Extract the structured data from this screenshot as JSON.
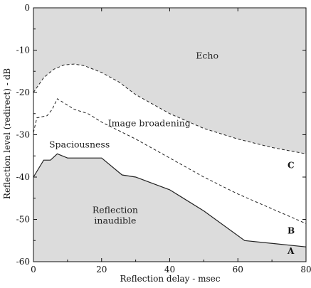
{
  "chart_data": {
    "type": "line",
    "xlabel": "Reflection delay - msec",
    "ylabel": "Reflection level (redirect) - dB",
    "xlim": [
      0,
      80
    ],
    "ylim": [
      -60,
      0
    ],
    "xticks": [
      "0",
      "20",
      "40",
      "60",
      "80"
    ],
    "yticks": [
      "0",
      "-10",
      "-20",
      "-30",
      "-40",
      "-50",
      "-60"
    ],
    "grid": false,
    "colors": {
      "shaded": "#dcdcdc",
      "line": "#222222",
      "background": "#ffffff"
    },
    "series": [
      {
        "name": "C",
        "style": "dashed",
        "x": [
          0,
          3,
          6,
          9,
          12,
          15,
          20,
          25,
          30,
          40,
          50,
          60,
          70,
          80
        ],
        "y": [
          -20,
          -16.5,
          -14.5,
          -13.5,
          -13.3,
          -13.7,
          -15.3,
          -17.5,
          -20.5,
          -25,
          -28.5,
          -31,
          -33,
          -34.5
        ]
      },
      {
        "name": "B",
        "style": "dashed",
        "x": [
          0,
          1,
          4,
          5.5,
          7,
          10,
          12,
          16,
          20,
          30,
          40,
          50,
          60,
          70,
          80
        ],
        "y": [
          -29.5,
          -26,
          -25.5,
          -24,
          -21.5,
          -23,
          -24,
          -25,
          -27,
          -31,
          -35.5,
          -40,
          -44,
          -47.5,
          -51
        ]
      },
      {
        "name": "A",
        "style": "solid",
        "x": [
          0,
          3,
          5,
          7,
          10,
          20,
          26,
          30,
          40,
          50,
          62,
          80
        ],
        "y": [
          -40,
          -36,
          -36,
          -34.5,
          -35.5,
          -35.5,
          -39.5,
          -40,
          -43,
          -48,
          -55,
          -56.5
        ]
      }
    ],
    "annotations": [
      {
        "text": "Echo",
        "x": 51,
        "y": -12
      },
      {
        "text": "Image broadening",
        "x": 34,
        "y": -28
      },
      {
        "text": "Spaciousness",
        "x": 13.5,
        "y": -33
      },
      {
        "text": "Reflection",
        "x": 24,
        "y": -48.5
      },
      {
        "text": "inaudible",
        "x": 24,
        "y": -51
      }
    ]
  }
}
